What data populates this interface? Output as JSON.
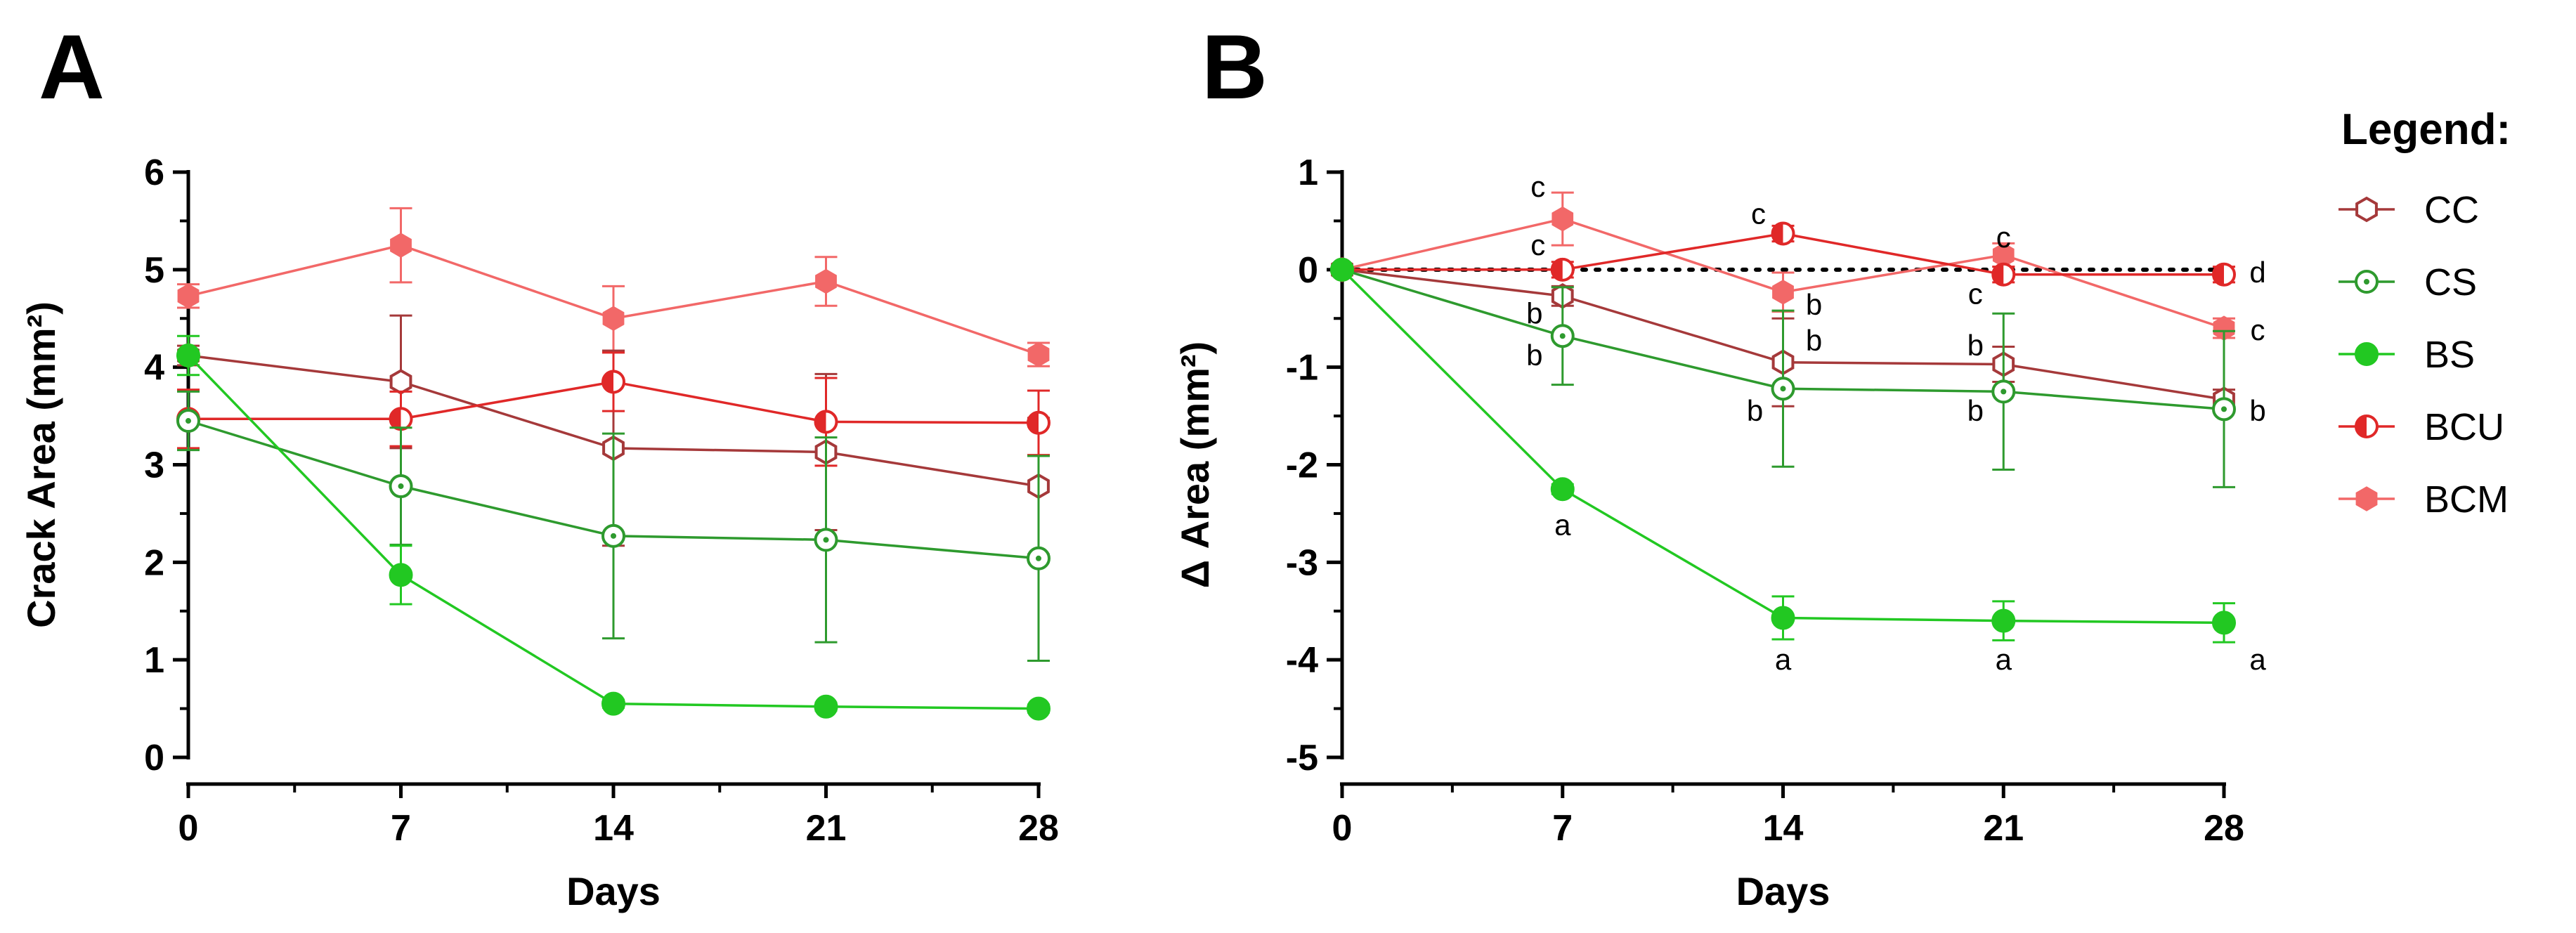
{
  "panels": {
    "a_letter": "A",
    "b_letter": "B"
  },
  "legend": {
    "title": "Legend:",
    "items": [
      {
        "name": "CC",
        "color": "#A5393A",
        "marker": "hex-open"
      },
      {
        "name": "CS",
        "color": "#2E9A2E",
        "marker": "circle-open-dot"
      },
      {
        "name": "BS",
        "color": "#22C822",
        "marker": "circle-filled"
      },
      {
        "name": "BCU",
        "color": "#E02828",
        "marker": "circle-split"
      },
      {
        "name": "BCM",
        "color": "#F26868",
        "marker": "hex-filled"
      }
    ]
  },
  "chart_data": [
    {
      "type": "line",
      "panel": "A",
      "xlabel": "Days",
      "ylabel": "Crack Area (mm²)",
      "x": [
        0,
        7,
        14,
        21,
        28
      ],
      "xticks": [
        "0",
        "7",
        "14",
        "21",
        "28"
      ],
      "ylim": [
        0,
        6
      ],
      "yticks": [
        "0",
        "1",
        "2",
        "3",
        "4",
        "5",
        "6"
      ],
      "series": [
        {
          "name": "BCM",
          "values": [
            4.73,
            5.25,
            4.5,
            4.88,
            4.13
          ],
          "errors": [
            0.12,
            0.38,
            0.33,
            0.25,
            0.12
          ]
        },
        {
          "name": "CC",
          "values": [
            4.12,
            3.85,
            3.17,
            3.13,
            2.78
          ],
          "errors": [
            0.1,
            0.68,
            1.0,
            0.8,
            0.7
          ]
        },
        {
          "name": "BCU",
          "values": [
            3.47,
            3.47,
            3.85,
            3.44,
            3.43
          ],
          "errors": [
            0.3,
            0.28,
            0.3,
            0.45,
            0.33
          ]
        },
        {
          "name": "CS",
          "values": [
            3.45,
            2.78,
            2.27,
            2.23,
            2.04
          ],
          "errors": [
            0.3,
            0.6,
            1.05,
            1.05,
            1.05
          ]
        },
        {
          "name": "BS",
          "values": [
            4.12,
            1.87,
            0.55,
            0.52,
            0.5
          ],
          "errors": [
            0.2,
            0.3,
            0.04,
            0.04,
            0.04
          ]
        }
      ]
    },
    {
      "type": "line",
      "panel": "B",
      "xlabel": "Days",
      "ylabel": "Δ Area (mm²)",
      "x": [
        0,
        7,
        14,
        21,
        28
      ],
      "xticks": [
        "0",
        "7",
        "14",
        "21",
        "28"
      ],
      "ylim": [
        -5,
        1
      ],
      "yticks": [
        "1",
        "0",
        "-1",
        "-2",
        "-3",
        "-4",
        "-5"
      ],
      "reference_line": 0,
      "series": [
        {
          "name": "BCM",
          "values": [
            0,
            0.52,
            -0.23,
            0.15,
            -0.6
          ],
          "errors": [
            0,
            0.27,
            0.2,
            0.12,
            0.1
          ]
        },
        {
          "name": "CC",
          "values": [
            0,
            -0.27,
            -0.95,
            -0.97,
            -1.33
          ],
          "errors": [
            0,
            0.1,
            0.45,
            0.18,
            0.1
          ]
        },
        {
          "name": "BCU",
          "values": [
            0,
            0.0,
            0.37,
            -0.05,
            -0.05
          ],
          "errors": [
            0,
            0.08,
            0.08,
            0.08,
            0.08
          ]
        },
        {
          "name": "CS",
          "values": [
            0,
            -0.68,
            -1.22,
            -1.25,
            -1.43
          ],
          "errors": [
            0,
            0.5,
            0.8,
            0.8,
            0.8
          ]
        },
        {
          "name": "BS",
          "values": [
            0,
            -2.25,
            -3.57,
            -3.6,
            -3.62
          ],
          "errors": [
            0,
            0.05,
            0.22,
            0.2,
            0.2
          ]
        }
      ],
      "annotations": [
        {
          "x": 7,
          "y": 0.85,
          "text": "c"
        },
        {
          "x": 7,
          "y": 0.25,
          "text": "c"
        },
        {
          "x": 7,
          "y": -0.45,
          "text": "b"
        },
        {
          "x": 7,
          "y": -0.88,
          "text": "b"
        },
        {
          "x": 7,
          "y": -2.62,
          "text": "a"
        },
        {
          "x": 14,
          "y": 0.57,
          "text": "c"
        },
        {
          "x": 14,
          "y": -0.36,
          "text": "b"
        },
        {
          "x": 14,
          "y": -0.73,
          "text": "b"
        },
        {
          "x": 14,
          "y": -1.45,
          "text": "b"
        },
        {
          "x": 14,
          "y": -4.0,
          "text": "a"
        },
        {
          "x": 21,
          "y": 0.33,
          "text": "c"
        },
        {
          "x": 21,
          "y": -0.25,
          "text": "c"
        },
        {
          "x": 21,
          "y": -0.78,
          "text": "b"
        },
        {
          "x": 21,
          "y": -1.45,
          "text": "b"
        },
        {
          "x": 21,
          "y": -4.0,
          "text": "a"
        },
        {
          "x": 28,
          "y": -0.03,
          "text": "d"
        },
        {
          "x": 28,
          "y": -0.62,
          "text": "c"
        },
        {
          "x": 28,
          "y": -1.45,
          "text": "b"
        },
        {
          "x": 28,
          "y": -4.0,
          "text": "a"
        }
      ]
    }
  ]
}
